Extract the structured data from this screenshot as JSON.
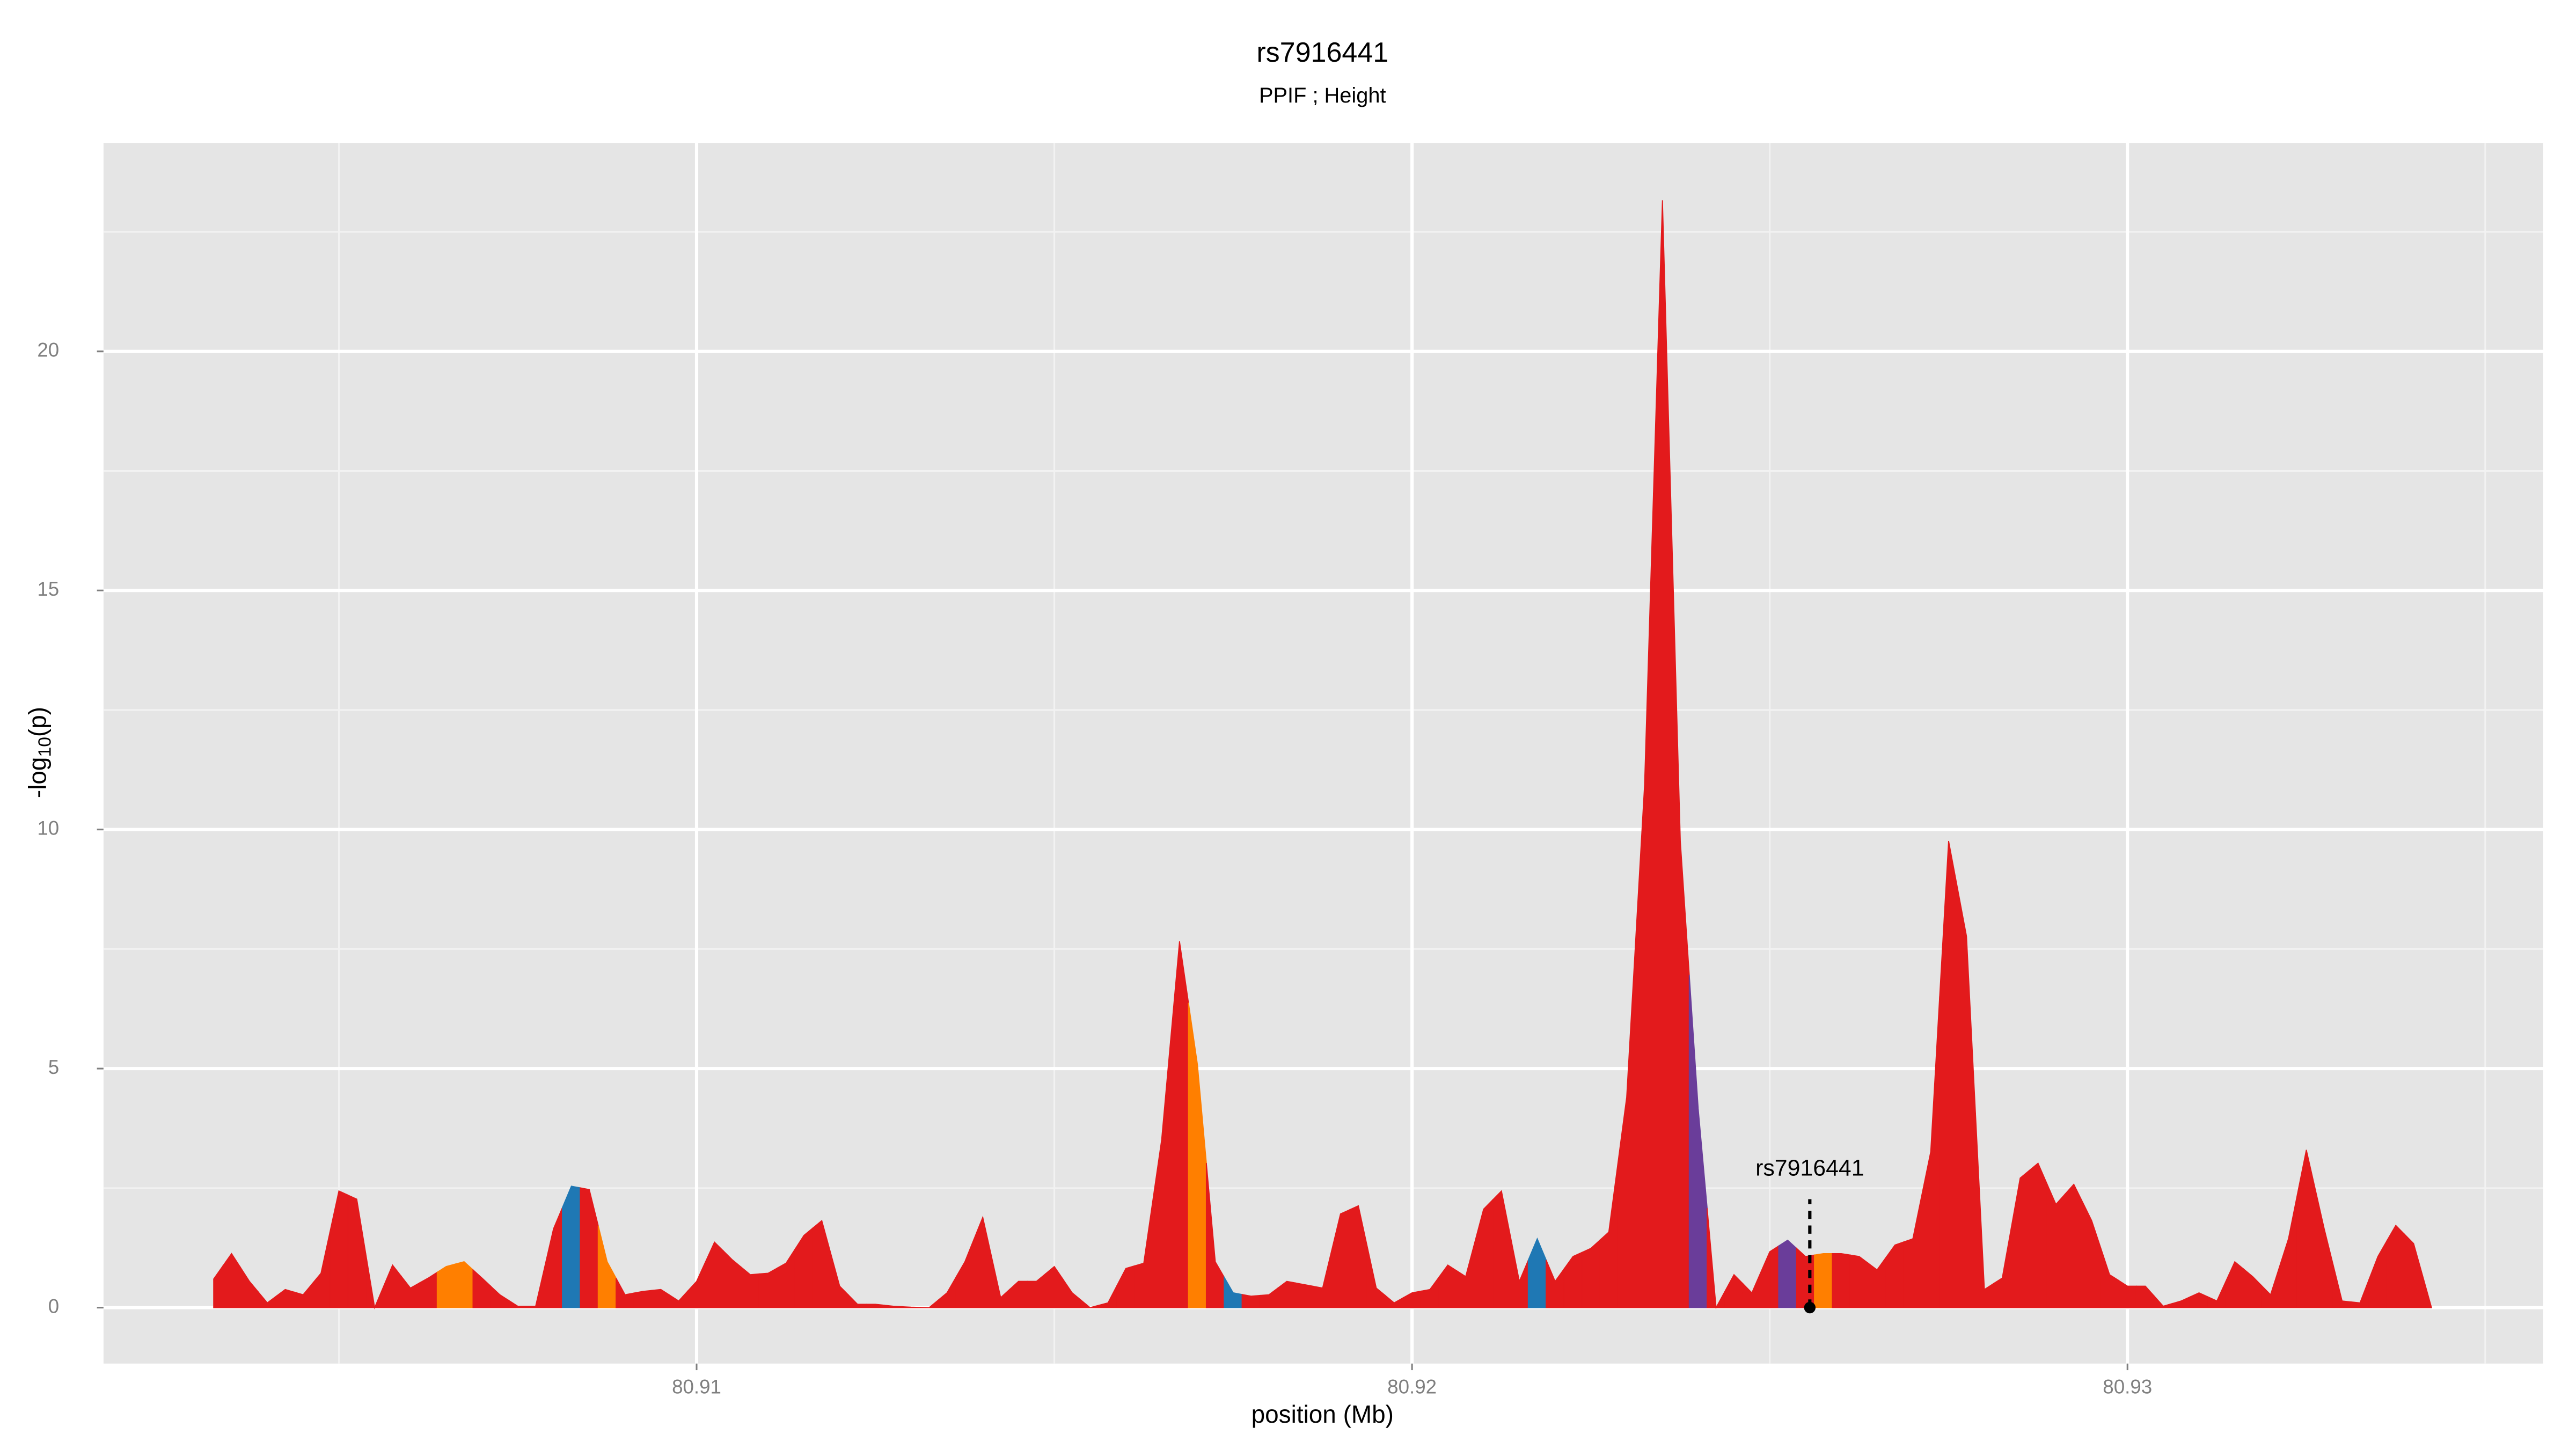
{
  "chart_data": {
    "type": "area",
    "title": "rs7916441",
    "subtitle": "PPIF ; Height",
    "xlabel": "position (Mb)",
    "ylabel": [
      "-log",
      "10",
      "(p)"
    ],
    "xlim": [
      80.90171,
      80.93581
    ],
    "ylim": [
      -1.17,
      24.36
    ],
    "xticks": [
      80.91,
      80.92,
      80.93
    ],
    "yticks": [
      0,
      5,
      10,
      15,
      20
    ],
    "grid": true,
    "x": [
      80.90325,
      80.9035,
      80.90375,
      80.904,
      80.90425,
      80.9045,
      80.90475,
      80.905,
      80.90525,
      80.9055,
      80.90575,
      80.906,
      80.90625,
      80.9065,
      80.90675,
      80.907,
      80.90725,
      80.9075,
      80.90775,
      80.908,
      80.90825,
      80.9085,
      80.90875,
      80.909,
      80.90925,
      80.9095,
      80.90975,
      80.91,
      80.91025,
      80.9105,
      80.91075,
      80.911,
      80.91125,
      80.9115,
      80.91175,
      80.912,
      80.91225,
      80.9125,
      80.91275,
      80.913,
      80.91325,
      80.9135,
      80.91375,
      80.914,
      80.91425,
      80.9145,
      80.91475,
      80.915,
      80.91525,
      80.9155,
      80.91575,
      80.916,
      80.91625,
      80.9165,
      80.91675,
      80.917,
      80.91725,
      80.9175,
      80.91775,
      80.918,
      80.91825,
      80.9185,
      80.91875,
      80.919,
      80.91925,
      80.9195,
      80.91975,
      80.92,
      80.92025,
      80.9205,
      80.92075,
      80.921,
      80.92125,
      80.9215,
      80.92175,
      80.922,
      80.92225,
      80.9225,
      80.92275,
      80.923,
      80.92325,
      80.9235,
      80.92375,
      80.924,
      80.92425,
      80.9245,
      80.92475,
      80.925,
      80.92525,
      80.9255,
      80.92575,
      80.926,
      80.92625,
      80.9265,
      80.92675,
      80.927,
      80.92725,
      80.9275,
      80.92775,
      80.928,
      80.92825,
      80.9285,
      80.92875,
      80.929,
      80.92925,
      80.9295,
      80.92975,
      80.93,
      80.93025,
      80.9305,
      80.93075,
      80.931,
      80.93125,
      80.9315,
      80.93175,
      80.932,
      80.93225,
      80.9325,
      80.93275,
      80.933,
      80.93325,
      80.9335,
      80.93375,
      80.934,
      80.93425
    ],
    "values": [
      0.6,
      1.13,
      0.55,
      0.1,
      0.38,
      0.27,
      0.72,
      2.44,
      2.27,
      0,
      0.89,
      0.41,
      0.62,
      0.86,
      0.96,
      0.62,
      0.27,
      0.03,
      0.03,
      1.65,
      2.54,
      2.47,
      0.96,
      0.27,
      0.34,
      0.38,
      0.14,
      0.55,
      1.37,
      1.0,
      0.69,
      0.72,
      0.93,
      1.51,
      1.82,
      0.45,
      0.07,
      0.07,
      0.03,
      0.01,
      0,
      0.31,
      0.96,
      1.89,
      0.21,
      0.55,
      0.55,
      0.86,
      0.31,
      0,
      0.1,
      0.82,
      0.93,
      3.51,
      7.66,
      5.09,
      0.96,
      0.31,
      0.24,
      0.27,
      0.55,
      0.48,
      0.41,
      1.96,
      2.13,
      0.41,
      0.1,
      0.31,
      0.38,
      0.89,
      0.65,
      2.06,
      2.44,
      0.55,
      1.44,
      0.55,
      1.07,
      1.24,
      1.58,
      4.4,
      10.93,
      23.16,
      9.76,
      4.16,
      0,
      0.69,
      0.31,
      1.17,
      1.41,
      1.07,
      1.13,
      1.13,
      1.07,
      0.79,
      1.31,
      1.44,
      3.26,
      9.76,
      7.77,
      0.38,
      0.62,
      2.71,
      3.02,
      2.16,
      2.58,
      1.82,
      0.69,
      0.45,
      0.45,
      0.03,
      0.14,
      0.31,
      0.14,
      0.96,
      0.65,
      0.27,
      1.44,
      3.3,
      1.65,
      0.14,
      0.1,
      1.07,
      1.72,
      1.34,
      0
    ],
    "colors": [
      "#e31a1c",
      "#e31a1c",
      "#e31a1c",
      "#e31a1c",
      "#e31a1c",
      "#e31a1c",
      "#e31a1c",
      "#e31a1c",
      "#e31a1c",
      "#e31a1c",
      "#e31a1c",
      "#e31a1c",
      "#e31a1c",
      "#ff7f00",
      "#ff7f00",
      "#e31a1c",
      "#e31a1c",
      "#e31a1c",
      "#e31a1c",
      "#e31a1c",
      "#1f78b4",
      "#e31a1c",
      "#ff7f00",
      "#e31a1c",
      "#e31a1c",
      "#e31a1c",
      "#e31a1c",
      "#e31a1c",
      "#e31a1c",
      "#e31a1c",
      "#e31a1c",
      "#e31a1c",
      "#e31a1c",
      "#e31a1c",
      "#e31a1c",
      "#e31a1c",
      "#e31a1c",
      "#e31a1c",
      "#e31a1c",
      "#e31a1c",
      "#e31a1c",
      "#e31a1c",
      "#e31a1c",
      "#e31a1c",
      "#e31a1c",
      "#e31a1c",
      "#e31a1c",
      "#e31a1c",
      "#e31a1c",
      "#e31a1c",
      "#e31a1c",
      "#e31a1c",
      "#e31a1c",
      "#e31a1c",
      "#e31a1c",
      "#ff7f00",
      "#e31a1c",
      "#1f78b4",
      "#e31a1c",
      "#e31a1c",
      "#e31a1c",
      "#e31a1c",
      "#e31a1c",
      "#e31a1c",
      "#e31a1c",
      "#e31a1c",
      "#e31a1c",
      "#e31a1c",
      "#e31a1c",
      "#e31a1c",
      "#e31a1c",
      "#e31a1c",
      "#e31a1c",
      "#e31a1c",
      "#1f78b4",
      "#e31a1c",
      "#e31a1c",
      "#e31a1c",
      "#e31a1c",
      "#e31a1c",
      "#e31a1c",
      "#e31a1c",
      "#e31a1c",
      "#6a3d9a",
      "#e31a1c",
      "#e31a1c",
      "#e31a1c",
      "#e31a1c",
      "#6a3d9a",
      "#e31a1c",
      "#ff7f00",
      "#e31a1c",
      "#e31a1c",
      "#e31a1c",
      "#e31a1c",
      "#e31a1c",
      "#e31a1c",
      "#e31a1c",
      "#e31a1c",
      "#e31a1c",
      "#e31a1c",
      "#e31a1c",
      "#e31a1c",
      "#e31a1c",
      "#e31a1c",
      "#e31a1c",
      "#e31a1c",
      "#e31a1c",
      "#e31a1c",
      "#e31a1c",
      "#e31a1c",
      "#e31a1c",
      "#e31a1c",
      "#e31a1c",
      "#e31a1c",
      "#e31a1c",
      "#e31a1c",
      "#e31a1c",
      "#e31a1c",
      "#e31a1c",
      "#e31a1c",
      "#e31a1c",
      "#e31a1c",
      "#e31a1c",
      "#e31a1c"
    ],
    "annotation": {
      "text": "rs7916441",
      "x": 80.92556
    }
  }
}
